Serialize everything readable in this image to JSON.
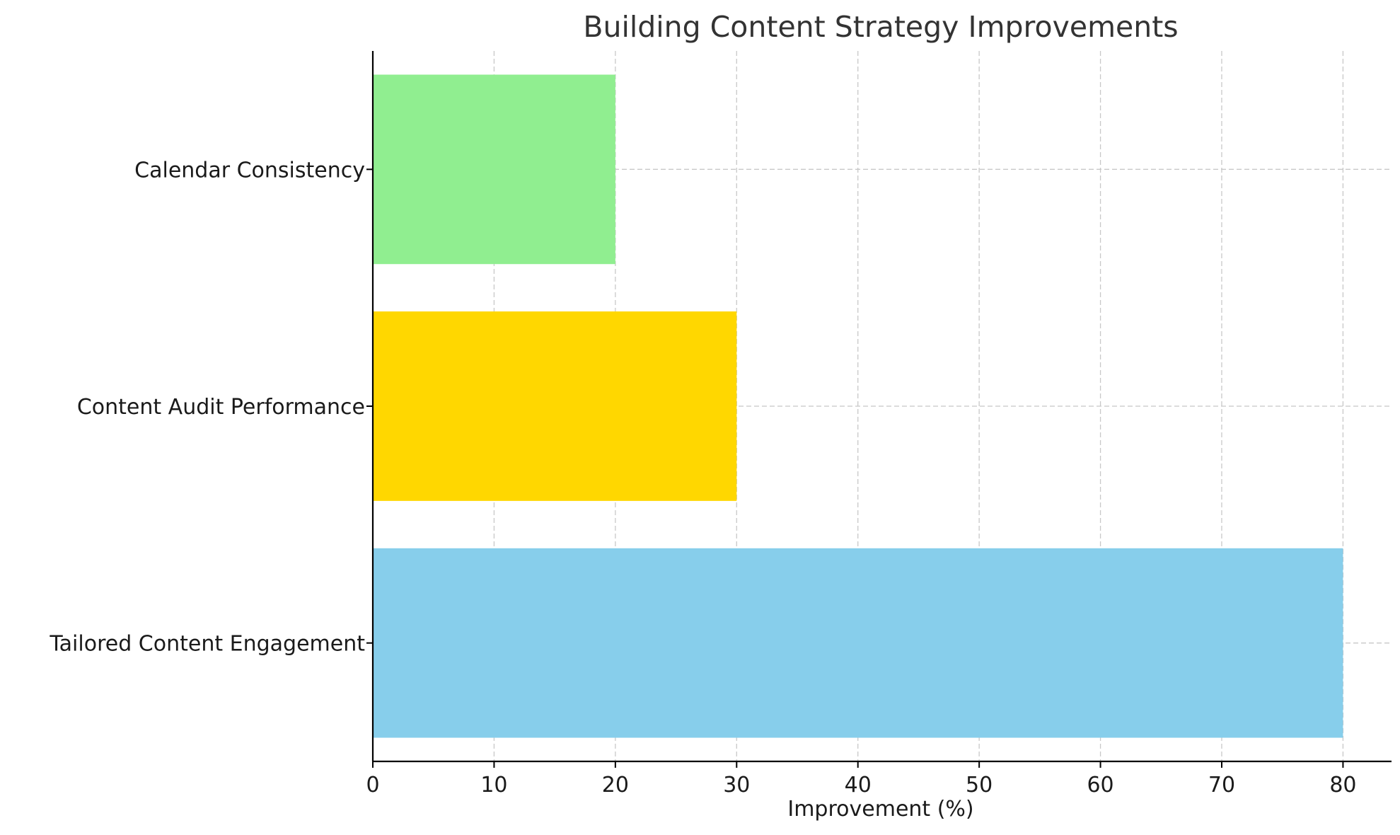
{
  "chart_data": {
    "type": "bar",
    "orientation": "horizontal",
    "title": "Building Content Strategy Improvements",
    "xlabel": "Improvement (%)",
    "ylabel": "",
    "categories": [
      "Tailored Content Engagement",
      "Content Audit Performance",
      "Calendar Consistency"
    ],
    "values": [
      80,
      30,
      20
    ],
    "colors": [
      "#87CEEB",
      "#FFD700",
      "#90EE90"
    ],
    "xlim": [
      0,
      84
    ],
    "xticks": [
      0,
      10,
      20,
      30,
      40,
      50,
      60,
      70,
      80
    ],
    "grid": true
  }
}
